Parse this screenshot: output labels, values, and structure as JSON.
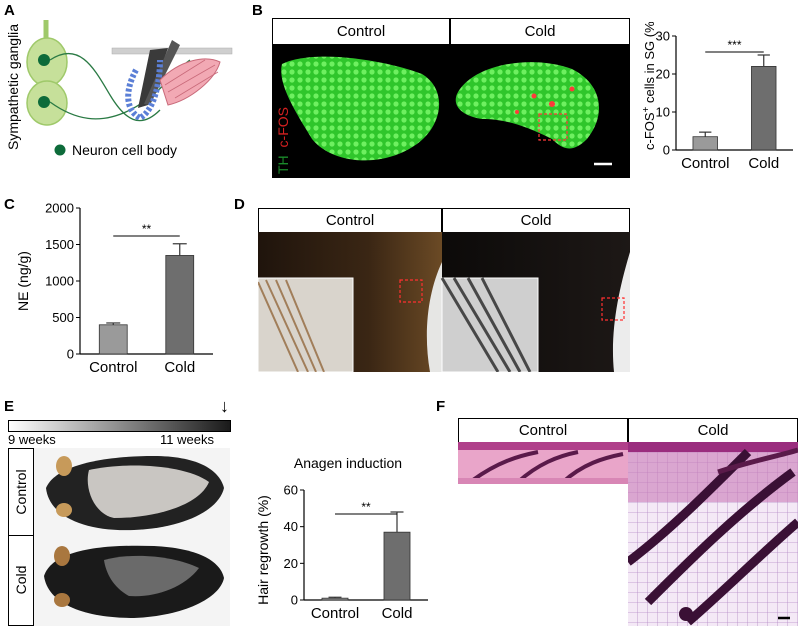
{
  "panels": {
    "A": {
      "letter": "A",
      "ganglia_label": "Sympathetic ganglia",
      "legend_label": "Neuron cell body"
    },
    "B": {
      "letter": "B",
      "headers": [
        "Control",
        "Cold"
      ],
      "stain_th": "TH",
      "stain_cfos": "c-FOS",
      "colors": {
        "th": "#1a8a2a",
        "cfos": "#d42020",
        "tissue": "#3fd63a"
      }
    },
    "C": {
      "letter": "C"
    },
    "D": {
      "letter": "D",
      "headers": [
        "Control",
        "Cold"
      ]
    },
    "E": {
      "letter": "E",
      "timeline_start": "9 weeks",
      "timeline_end": "11 weeks",
      "arrow_glyph": "↓",
      "row_labels": [
        "Control",
        "Cold"
      ]
    },
    "F": {
      "letter": "F",
      "headers": [
        "Control",
        "Cold"
      ]
    }
  },
  "chart_data": [
    {
      "id": "B-chart",
      "type": "bar",
      "categories": [
        "Control",
        "Cold"
      ],
      "values": [
        3.5,
        22
      ],
      "errors": [
        1.2,
        3
      ],
      "ylabel_main": "c-FOS",
      "ylabel_sup": "+",
      "ylabel_rest": " cells in SG (%)",
      "ylim": [
        0,
        30
      ],
      "yticks": [
        0,
        10,
        20,
        30
      ],
      "significance": "***",
      "bar_colors": [
        "#9a9a9a",
        "#6e6e6e"
      ]
    },
    {
      "id": "C-chart",
      "type": "bar",
      "categories": [
        "Control",
        "Cold"
      ],
      "values": [
        400,
        1350
      ],
      "errors": [
        25,
        160
      ],
      "ylabel": "NE (ng/g)",
      "ylim": [
        0,
        2000
      ],
      "yticks": [
        0,
        500,
        1000,
        1500,
        2000
      ],
      "significance": "**",
      "bar_colors": [
        "#9a9a9a",
        "#6e6e6e"
      ]
    },
    {
      "id": "E-chart",
      "type": "bar",
      "categories": [
        "Control",
        "Cold"
      ],
      "values": [
        1,
        37
      ],
      "errors": [
        0.5,
        11
      ],
      "title": "Anagen induction",
      "ylabel": "Hair regrowth (%)",
      "ylim": [
        0,
        60
      ],
      "yticks": [
        0,
        20,
        40,
        60
      ],
      "significance": "**",
      "bar_colors": [
        "#9a9a9a",
        "#6e6e6e"
      ]
    }
  ]
}
